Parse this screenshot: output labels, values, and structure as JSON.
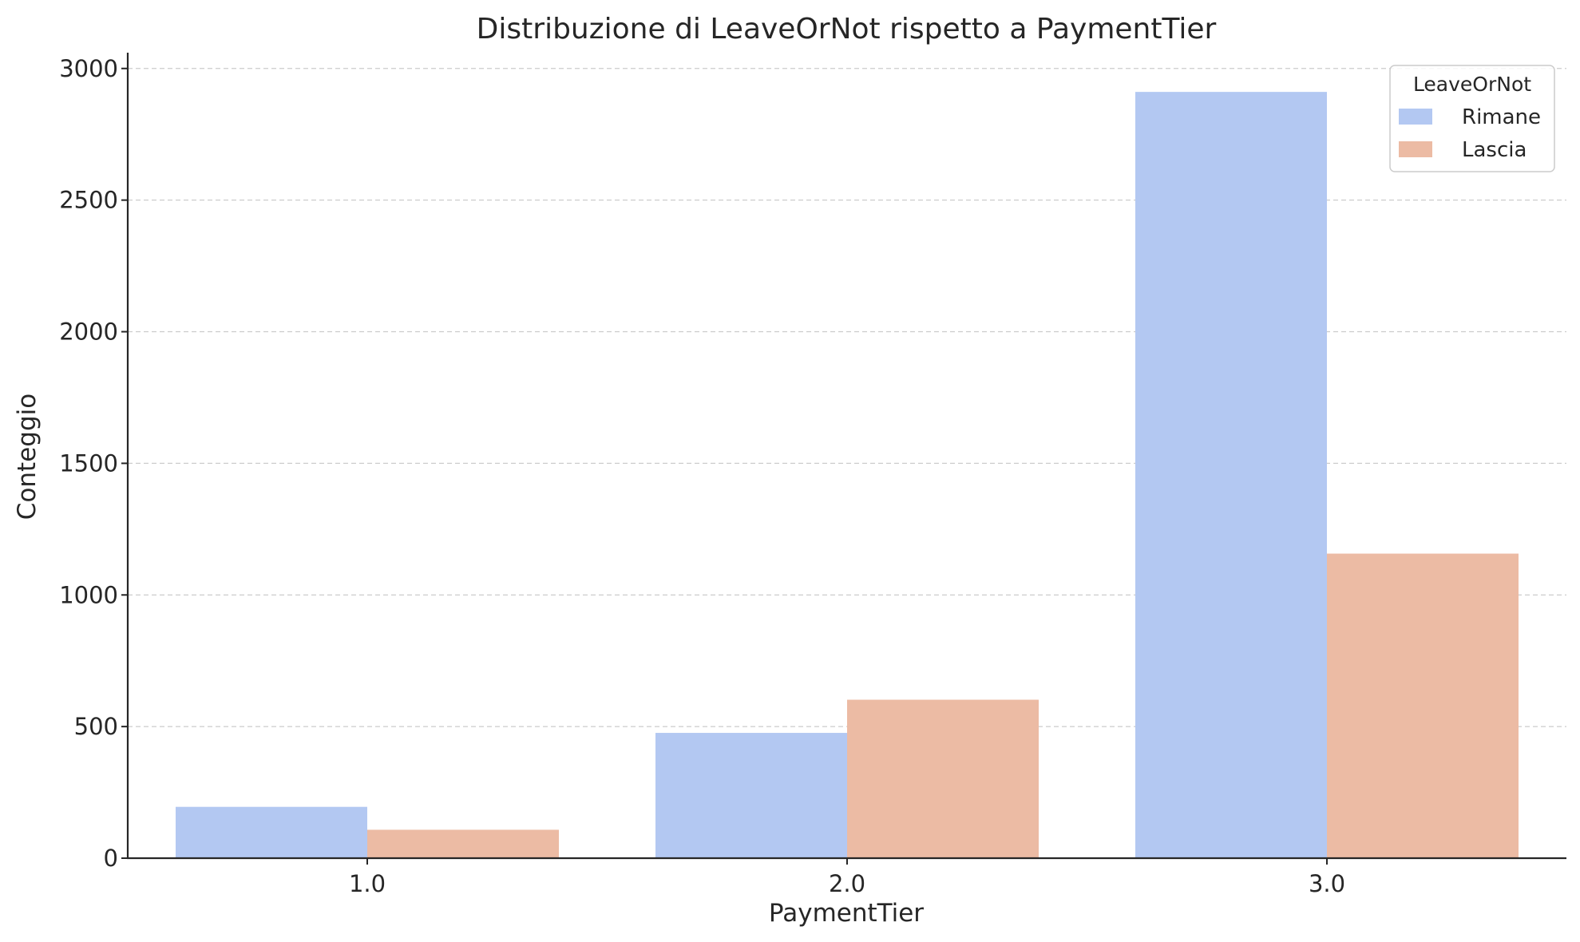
{
  "chart_data": {
    "type": "bar",
    "title": "Distribuzione di LeaveOrNot rispetto a PaymentTier",
    "xlabel": "PaymentTier",
    "ylabel": "Conteggio",
    "categories": [
      "1.0",
      "2.0",
      "3.0"
    ],
    "series": [
      {
        "name": "Rimane",
        "color": "#b3c8f2",
        "values": [
          195,
          476,
          2911
        ]
      },
      {
        "name": "Lascia",
        "color": "#ecbba4",
        "values": [
          108,
          602,
          1157
        ]
      }
    ],
    "ylim": [
      0,
      3060
    ],
    "yticks": [
      0,
      500,
      1000,
      1500,
      2000,
      2500,
      3000
    ],
    "grid": "horizontal dashed",
    "legend": {
      "title": "LeaveOrNot",
      "position": "top-right"
    }
  }
}
